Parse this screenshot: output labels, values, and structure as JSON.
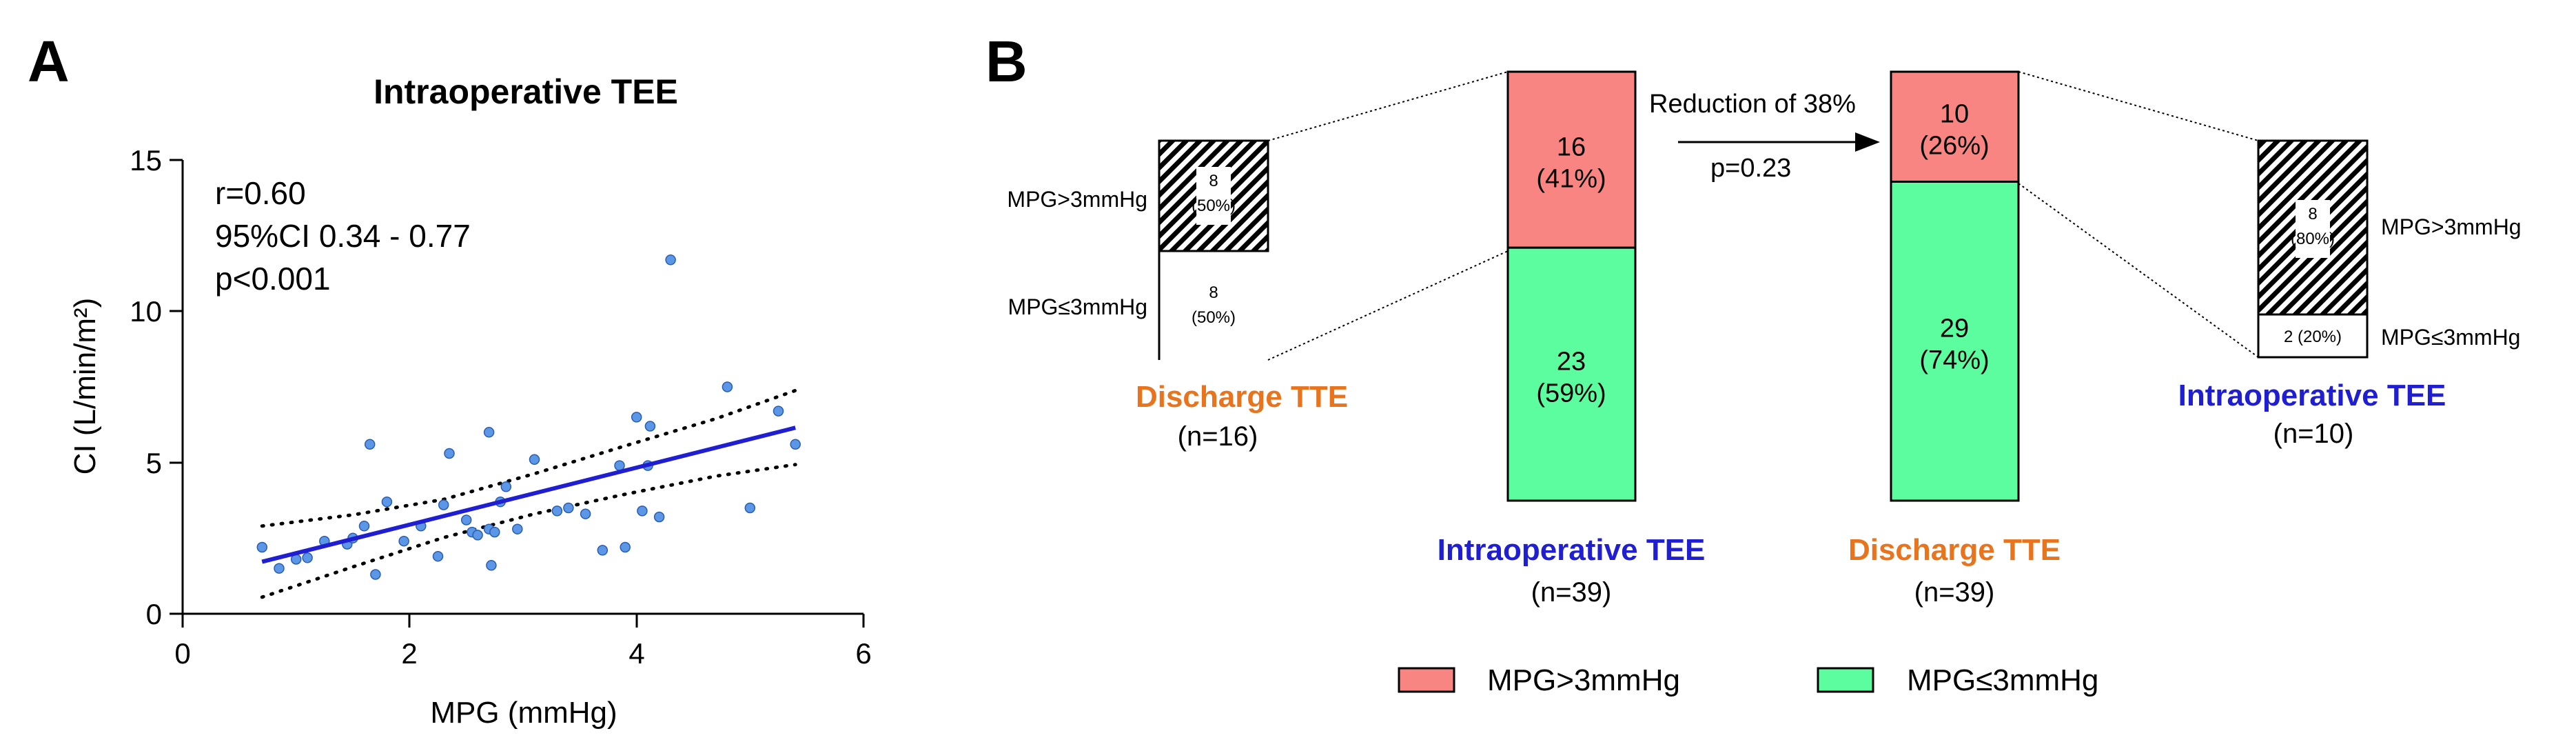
{
  "colors": {
    "gt3": "#f98582",
    "le3": "#5cfd9e",
    "fit_line": "#1f1fd1",
    "points": "#5b97e6",
    "points_edge": "#2a5db0",
    "blue_text": "#1f1fd1",
    "orange_text": "#e8741e"
  },
  "panel_a": {
    "letter": "A",
    "stats": [
      "r=0.60",
      "95%CI 0.34 - 0.77",
      "p<0.001"
    ]
  },
  "panel_b": {
    "letter": "B",
    "annotation": {
      "line1": "Reduction of 38%",
      "line2": "p=0.23"
    },
    "bar1_caption": {
      "title": "Intraoperative TEE",
      "n": "(n=39)"
    },
    "bar2_caption": {
      "title": "Discharge TTE",
      "n": "(n=39)"
    },
    "left_inset": {
      "caption": "Discharge TTE",
      "n": "(n=16)",
      "top_label": "MPG>3mmHg",
      "bottom_label": "MPG≤3mmHg",
      "top_count": "8",
      "top_pct": "(50%)",
      "bottom_count": "8",
      "bottom_pct": "(50%)"
    },
    "right_inset": {
      "caption": "Intraoperative  TEE",
      "n": "(n=10)",
      "top_label": "MPG>3mmHg",
      "bottom_label": "MPG≤3mmHg",
      "top_count": "8",
      "top_pct": "(80%)",
      "bottom_text": "2 (20%)"
    },
    "legend": [
      "MPG>3mmHg",
      "MPG≤3mmHg"
    ]
  },
  "chart_data": [
    {
      "type": "scatter",
      "title": "Intraoperative TEE",
      "xlabel": "MPG (mmHg)",
      "ylabel": "CI (L/min/m²)",
      "xlim": [
        0,
        6
      ],
      "ylim": [
        0,
        15
      ],
      "xticks": [
        0,
        2,
        4,
        6
      ],
      "yticks": [
        0,
        5,
        10,
        15
      ],
      "points": [
        [
          0.7,
          2.2
        ],
        [
          0.85,
          1.5
        ],
        [
          1.0,
          1.8
        ],
        [
          1.1,
          1.85
        ],
        [
          1.25,
          2.4
        ],
        [
          1.45,
          2.3
        ],
        [
          1.5,
          2.5
        ],
        [
          1.6,
          2.9
        ],
        [
          1.65,
          5.6
        ],
        [
          1.7,
          1.3
        ],
        [
          1.8,
          3.7
        ],
        [
          1.95,
          2.4
        ],
        [
          2.1,
          2.9
        ],
        [
          2.25,
          1.9
        ],
        [
          2.3,
          3.6
        ],
        [
          2.35,
          5.3
        ],
        [
          2.5,
          3.1
        ],
        [
          2.55,
          2.7
        ],
        [
          2.6,
          2.6
        ],
        [
          2.7,
          2.8
        ],
        [
          2.7,
          6.0
        ],
        [
          2.72,
          1.6
        ],
        [
          2.75,
          2.7
        ],
        [
          2.8,
          3.7
        ],
        [
          2.85,
          4.2
        ],
        [
          2.95,
          2.8
        ],
        [
          3.1,
          5.1
        ],
        [
          3.3,
          3.4
        ],
        [
          3.4,
          3.5
        ],
        [
          3.55,
          3.3
        ],
        [
          3.7,
          2.1
        ],
        [
          3.85,
          4.9
        ],
        [
          3.9,
          2.2
        ],
        [
          4.0,
          6.5
        ],
        [
          4.05,
          3.4
        ],
        [
          4.1,
          4.9
        ],
        [
          4.12,
          6.2
        ],
        [
          4.2,
          3.2
        ],
        [
          4.3,
          11.7
        ],
        [
          4.8,
          7.5
        ],
        [
          5.0,
          3.5
        ],
        [
          5.25,
          6.7
        ],
        [
          5.4,
          5.6
        ]
      ],
      "regression": {
        "x": [
          0.7,
          5.4
        ],
        "y": [
          1.72,
          6.15
        ]
      },
      "ci_band": {
        "x": [
          0.7,
          1.5,
          2.3,
          3.1,
          3.9,
          4.7,
          5.4
        ],
        "upper": [
          2.9,
          3.27,
          3.78,
          4.63,
          5.55,
          6.45,
          7.38
        ],
        "lower": [
          0.55,
          1.55,
          2.52,
          3.3,
          3.95,
          4.55,
          4.93
        ]
      }
    },
    {
      "type": "bar",
      "stacked": true,
      "categories": [
        "Intraoperative TEE",
        "Discharge TTE"
      ],
      "series": [
        {
          "name": "MPG≤3mmHg",
          "values": [
            23,
            29
          ],
          "labels": [
            "(59%)",
            "(74%)"
          ]
        },
        {
          "name": "MPG>3mmHg",
          "values": [
            16,
            10
          ],
          "labels": [
            "(41%)",
            "(26%)"
          ]
        }
      ],
      "totals": [
        39,
        39
      ],
      "legend": "bottom"
    },
    {
      "type": "bar",
      "stacked": true,
      "title": "Discharge TTE",
      "categories": [
        "(n=16)"
      ],
      "series": [
        {
          "name": "MPG≤3mmHg",
          "values": [
            8
          ],
          "labels": [
            "(50%)"
          ]
        },
        {
          "name": "MPG>3mmHg",
          "values": [
            8
          ],
          "labels": [
            "(50%)"
          ]
        }
      ]
    },
    {
      "type": "bar",
      "stacked": true,
      "title": "Intraoperative  TEE",
      "categories": [
        "(n=10)"
      ],
      "series": [
        {
          "name": "MPG≤3mmHg",
          "values": [
            2
          ],
          "labels": [
            "(20%)"
          ]
        },
        {
          "name": "MPG>3mmHg",
          "values": [
            8
          ],
          "labels": [
            "(80%)"
          ]
        }
      ]
    }
  ]
}
